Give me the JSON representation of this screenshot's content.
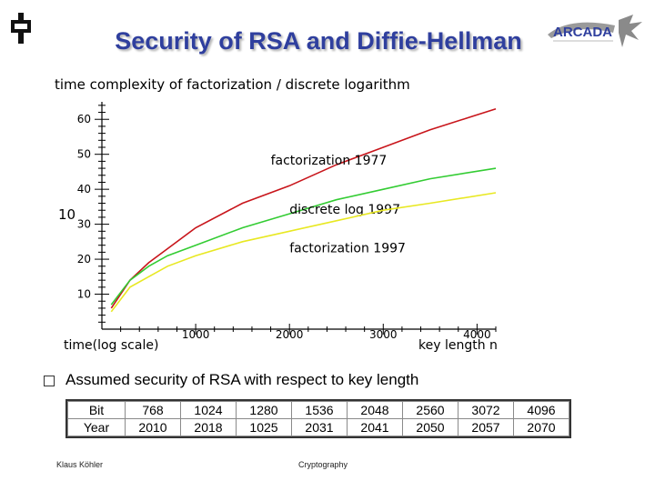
{
  "slide": {
    "title": "Security of RSA and Diffie-Hellman",
    "logo_text": "ARCADA",
    "bullet": "Assumed security of RSA with respect to key length",
    "footer_author": "Klaus Köhler",
    "footer_topic": "Cryptography"
  },
  "chart_data": {
    "type": "line",
    "title": "time complexity of factorization / discrete logarithm",
    "ylabel": "10",
    "xlabel_left": "time(log scale)",
    "xlabel_right": "key length n",
    "xlim": [
      0,
      4200
    ],
    "ylim": [
      0,
      65
    ],
    "x_ticks": [
      1000,
      2000,
      3000,
      4000
    ],
    "y_ticks": [
      10,
      20,
      30,
      40,
      50,
      60
    ],
    "series": [
      {
        "name": "factorization 1977",
        "color": "#c8151b",
        "x": [
          100,
          300,
          500,
          700,
          1000,
          1500,
          2000,
          2500,
          3000,
          3500,
          4200
        ],
        "y": [
          6,
          14,
          19,
          23,
          29,
          36,
          41,
          47,
          52,
          57,
          63
        ]
      },
      {
        "name": "discrete log 1997",
        "color": "#33cc33",
        "x": [
          100,
          300,
          500,
          700,
          1000,
          1500,
          2000,
          2500,
          3000,
          3500,
          4200
        ],
        "y": [
          7,
          14,
          18,
          21,
          24,
          29,
          33,
          37,
          40,
          43,
          46
        ]
      },
      {
        "name": "factorization 1997",
        "color": "#e8e822",
        "x": [
          100,
          300,
          500,
          700,
          1000,
          1500,
          2000,
          2500,
          3000,
          3500,
          4200
        ],
        "y": [
          5,
          12,
          15,
          18,
          21,
          25,
          28,
          31,
          34,
          36,
          39
        ]
      }
    ]
  },
  "table": {
    "rows": [
      {
        "label": "Bit",
        "values": [
          "768",
          "1024",
          "1280",
          "1536",
          "2048",
          "2560",
          "3072",
          "4096"
        ]
      },
      {
        "label": "Year",
        "values": [
          "2010",
          "2018",
          "1025",
          "2031",
          "2041",
          "2050",
          "2057",
          "2070"
        ]
      }
    ]
  }
}
